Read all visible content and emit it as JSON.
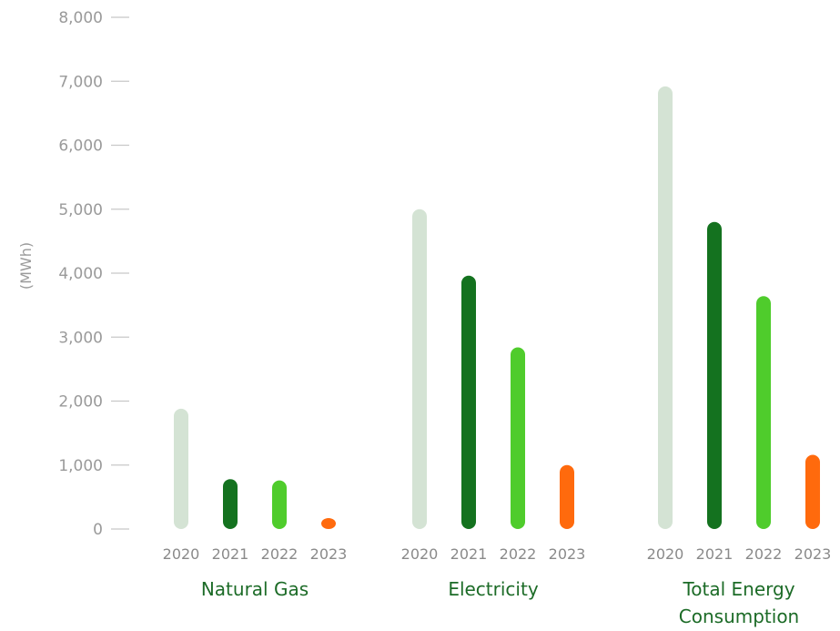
{
  "chart_data": {
    "type": "bar",
    "ylabel": "(MWh)",
    "ylim": [
      0,
      8000
    ],
    "yticks": [
      "0",
      "1,000",
      "2,000",
      "3,000",
      "4,000",
      "5,000",
      "6,000",
      "7,000",
      "8,000"
    ],
    "grid": false,
    "categories": [
      {
        "name_lines": [
          "Natural Gas"
        ]
      },
      {
        "name_lines": [
          "Electricity"
        ]
      },
      {
        "name_lines": [
          "Total Energy",
          "Consumption"
        ]
      }
    ],
    "series": [
      {
        "name": "2020",
        "color": "#d4e3d4",
        "values": [
          1880,
          5000,
          6920
        ]
      },
      {
        "name": "2021",
        "color": "#14721f",
        "values": [
          780,
          3960,
          4800
        ]
      },
      {
        "name": "2022",
        "color": "#4fcc2c",
        "values": [
          760,
          2840,
          3640
        ]
      },
      {
        "name": "2023",
        "color": "#ff6a0d",
        "values": [
          120,
          1000,
          1160
        ]
      }
    ]
  }
}
